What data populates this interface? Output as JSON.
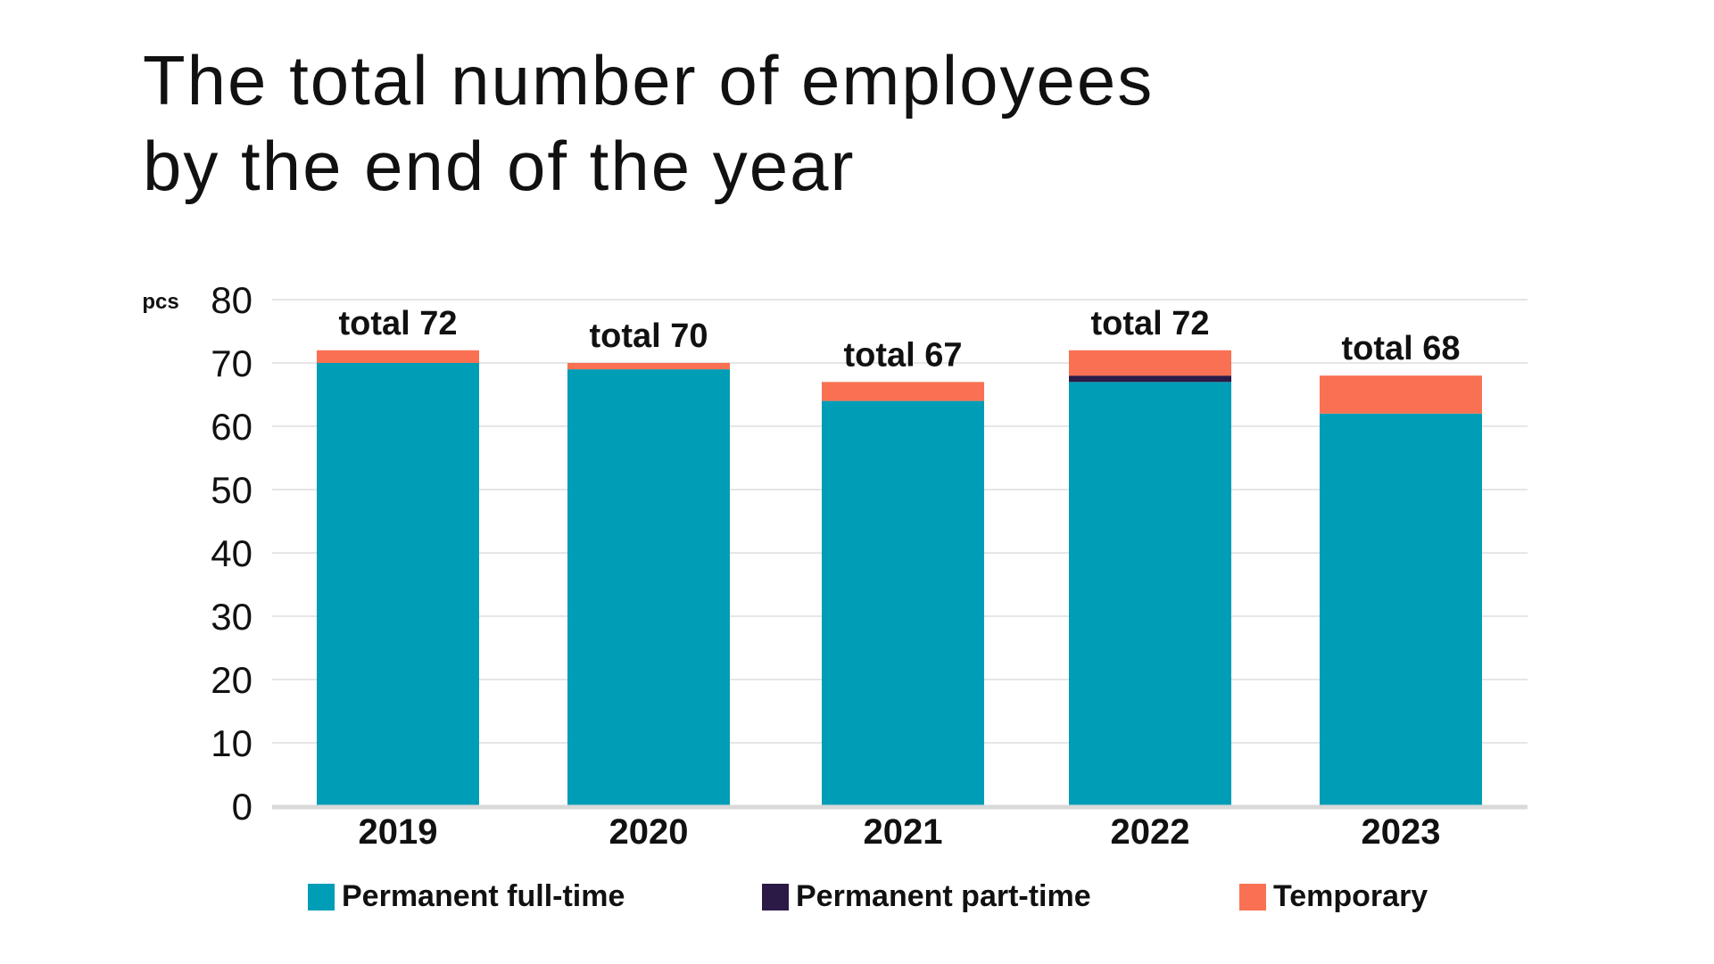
{
  "chart_data": {
    "type": "bar",
    "stacked": true,
    "title": "The total number of employees by the end of the year",
    "title_lines": [
      "The total number of employees",
      "by the end of the year"
    ],
    "ylabel": "pcs",
    "xlabel": "",
    "ylim": [
      0,
      80
    ],
    "yticks": [
      "0",
      "10",
      "20",
      "30",
      "40",
      "50",
      "60",
      "70",
      "80"
    ],
    "grid": true,
    "legend_position": "bottom",
    "categories": [
      "2019",
      "2020",
      "2021",
      "2022",
      "2023"
    ],
    "series": [
      {
        "name": "Permanent full-time",
        "color": "#009db6",
        "values": [
          70,
          69,
          64,
          67,
          62
        ]
      },
      {
        "name": "Permanent part-time",
        "color": "#2b1a45",
        "values": [
          0,
          0,
          0,
          1,
          0
        ]
      },
      {
        "name": "Temporary",
        "color": "#f97152",
        "values": [
          2,
          1,
          3,
          4,
          6
        ]
      }
    ],
    "totals": [
      72,
      70,
      67,
      72,
      68
    ],
    "total_labels": [
      "total 72",
      "total 70",
      "total 67",
      "total 72",
      "total 68"
    ]
  }
}
